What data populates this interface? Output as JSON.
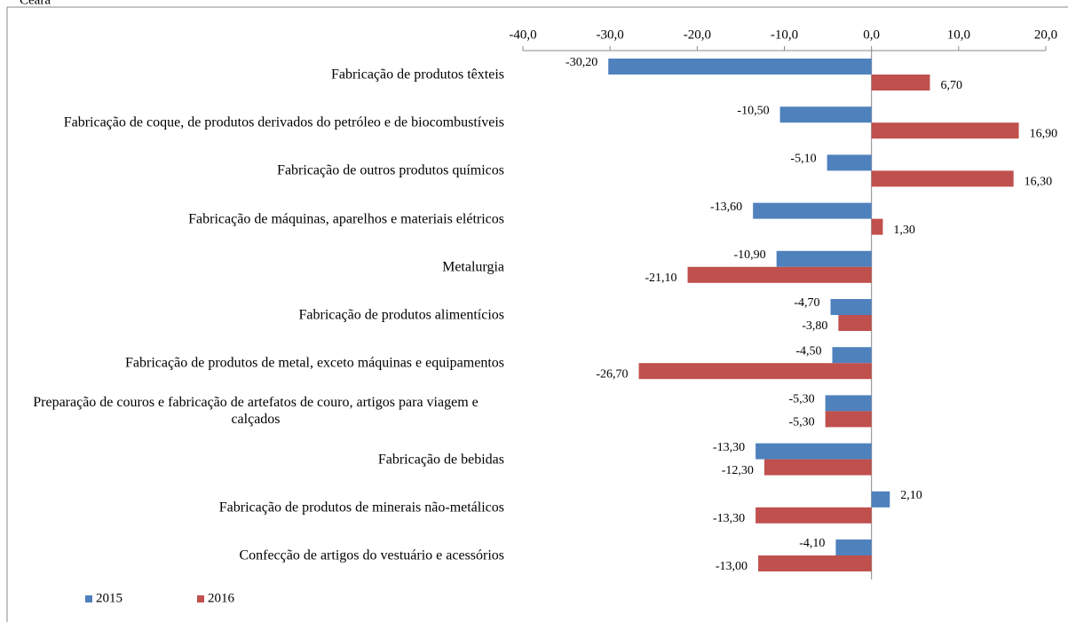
{
  "chart_data": {
    "type": "bar",
    "orientation": "horizontal",
    "title": "Ceará",
    "categories": [
      "Fabricação de produtos têxteis",
      "Fabricação de coque, de produtos derivados do petróleo e de biocombustíveis",
      "Fabricação de outros produtos químicos",
      "Fabricação de máquinas, aparelhos e materiais elétricos",
      "Metalurgia",
      "Fabricação de produtos alimentícios",
      "Fabricação de produtos de metal, exceto máquinas e equipamentos",
      "Preparação de couros e fabricação de artefatos de couro, artigos para viagem e calçados",
      "Fabricação de bebidas",
      "Fabricação de produtos de minerais não-metálicos",
      "Confecção de artigos do vestuário e acessórios"
    ],
    "series": [
      {
        "name": "2015",
        "color": "#4f81bd",
        "values": [
          -30.2,
          -10.5,
          -5.1,
          -13.6,
          -10.9,
          -4.7,
          -4.5,
          -5.3,
          -13.3,
          2.1,
          -4.1
        ],
        "value_labels": [
          "-30,20",
          "-10,50",
          "-5,10",
          "-13,60",
          "-10,90",
          "-4,70",
          "-4,50",
          "-5,30",
          "-13,30",
          "2,10",
          "-4,10"
        ]
      },
      {
        "name": "2016",
        "color": "#c0504d",
        "values": [
          6.7,
          16.9,
          16.3,
          1.3,
          -21.1,
          -3.8,
          -26.7,
          -5.3,
          -12.3,
          -13.3,
          -13.0
        ],
        "value_labels": [
          "6,70",
          "16,90",
          "16,30",
          "1,30",
          "-21,10",
          "-3,80",
          "-26,70",
          "-5,30",
          "-12,30",
          "-13,30",
          "-13,00"
        ]
      }
    ],
    "xlim": [
      -40,
      20
    ],
    "xticks": [
      {
        "value": -40,
        "label": "-40,0"
      },
      {
        "value": -30,
        "label": "-30,0"
      },
      {
        "value": -20,
        "label": "-20,0"
      },
      {
        "value": -10,
        "label": "-10,0"
      },
      {
        "value": 0,
        "label": "0,0"
      },
      {
        "value": 10,
        "label": "10,0"
      },
      {
        "value": 20,
        "label": "20,0"
      }
    ],
    "legend": "bottom-left"
  }
}
